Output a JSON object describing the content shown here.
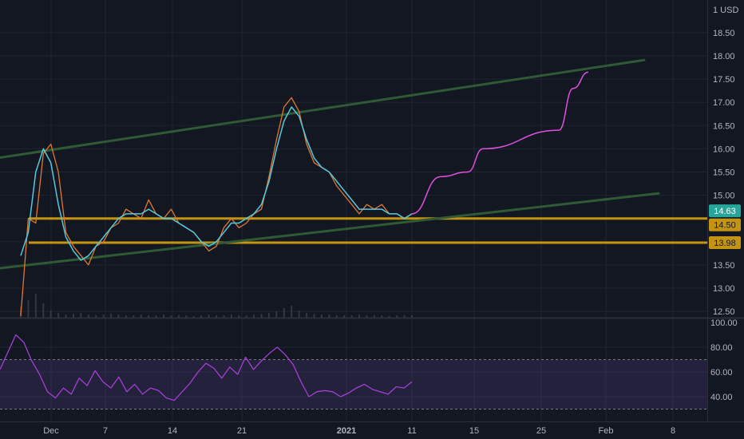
{
  "colors": {
    "background": "#131722",
    "grid": "#1f2433",
    "axis_text": "#b2b5be",
    "price_line": "#e0782e",
    "ma_line": "#52c9dc",
    "channel": "#2f5a35",
    "support": "#c39312",
    "projection": "#e14fe0",
    "rsi_line": "#a43fd6",
    "rsi_band": "rgba(126,87,194,0.16)",
    "last_price_bg": "#26a69a",
    "level_bg": "#c39312"
  },
  "axis": {
    "currency": "1 USD",
    "price_ticks": [
      "18.50",
      "18.00",
      "17.50",
      "17.00",
      "16.50",
      "16.00",
      "15.50",
      "15.00",
      "14.50",
      "14.00",
      "13.50",
      "13.00",
      "12.50"
    ],
    "rsi_ticks": [
      "100.00",
      "80.00",
      "60.00",
      "40.00"
    ],
    "x_ticks": [
      "Dec",
      "7",
      "14",
      "21",
      "2021",
      "11",
      "15",
      "25",
      "Feb",
      "8"
    ]
  },
  "labels": {
    "last_price": "14.63",
    "level_upper": "14.50",
    "level_lower": "13.98"
  },
  "chart_data": [
    {
      "type": "line",
      "title": "",
      "y_unit": "USD",
      "ylim": [
        12.3,
        18.95
      ],
      "x_tick_labels": [
        "Dec",
        "7",
        "14",
        "21",
        "2021",
        "11",
        "15",
        "25",
        "Feb",
        "8"
      ],
      "series": [
        {
          "y": [
            12.4,
            14.5,
            14.4,
            15.9,
            16.1,
            15.5,
            14.2,
            13.9,
            13.7,
            13.5,
            13.9,
            14.0,
            14.3,
            14.4,
            14.7,
            14.6,
            14.5,
            14.9,
            14.6,
            14.5,
            14.7,
            14.4,
            14.3,
            14.2,
            14.0,
            13.8,
            13.9,
            14.3,
            14.5,
            14.3,
            14.4,
            14.6,
            14.7,
            15.4,
            16.2,
            16.9,
            17.1,
            16.8,
            16.1,
            15.7,
            15.6,
            15.5,
            15.2,
            15.0,
            14.8,
            14.6,
            14.8,
            14.7,
            14.8,
            14.6,
            14.6,
            14.5,
            14.6
          ]
        },
        {
          "y": [
            13.7,
            14.2,
            15.5,
            16.0,
            15.7,
            14.8,
            14.1,
            13.8,
            13.6,
            13.7,
            13.9,
            14.1,
            14.3,
            14.5,
            14.6,
            14.6,
            14.6,
            14.7,
            14.6,
            14.5,
            14.5,
            14.4,
            14.3,
            14.2,
            14.0,
            13.9,
            14.0,
            14.2,
            14.4,
            14.4,
            14.5,
            14.6,
            14.8,
            15.3,
            16.0,
            16.6,
            16.9,
            16.7,
            16.2,
            15.8,
            15.6,
            15.5,
            15.3,
            15.1,
            14.9,
            14.7,
            14.7,
            14.7,
            14.7,
            14.6,
            14.6,
            14.5,
            14.6
          ]
        }
      ],
      "trendlines": [
        {
          "from": [
            "Nov 22",
            15.81
          ],
          "to": [
            "Feb 4",
            17.91
          ]
        },
        {
          "from": [
            "Nov 22",
            13.43
          ],
          "to": [
            "Feb 5",
            15.04
          ]
        }
      ],
      "horizontal_levels": [
        14.5,
        13.98
      ],
      "projection": [
        {
          "x": "Jan 11",
          "y": 14.6
        },
        {
          "x": "Jan 14",
          "y": 15.4
        },
        {
          "x": "Jan 18",
          "y": 15.5
        },
        {
          "x": "Jan 21",
          "y": 16.0
        },
        {
          "x": "Jan 27",
          "y": 16.4
        },
        {
          "x": "Jan 30",
          "y": 17.3
        },
        {
          "x": "Feb 1",
          "y": 17.65
        }
      ],
      "volume": [
        14,
        22,
        30,
        18,
        9,
        6,
        4,
        5,
        6,
        4,
        3,
        4,
        5,
        4,
        3,
        3,
        4,
        3,
        3,
        4,
        3,
        3,
        3,
        2,
        3,
        4,
        3,
        3,
        4,
        3,
        3,
        4,
        5,
        6,
        8,
        12,
        15,
        9,
        6,
        5,
        4,
        4,
        3,
        3,
        3,
        4,
        3,
        3,
        3,
        2,
        3,
        3,
        3
      ]
    },
    {
      "type": "line",
      "title": "",
      "ylim": [
        25,
        100
      ],
      "band": [
        30,
        70
      ],
      "series": [
        {
          "y": [
            62,
            76,
            90,
            84,
            69,
            58,
            44,
            39,
            47,
            42,
            55,
            49,
            61,
            52,
            47,
            56,
            44,
            50,
            42,
            47,
            45,
            39,
            37,
            44,
            51,
            60,
            67,
            63,
            55,
            64,
            58,
            72,
            62,
            69,
            75,
            80,
            74,
            66,
            52,
            40,
            44,
            45,
            44,
            40,
            43,
            47,
            50,
            46,
            44,
            42,
            48,
            47,
            52
          ]
        }
      ]
    }
  ]
}
